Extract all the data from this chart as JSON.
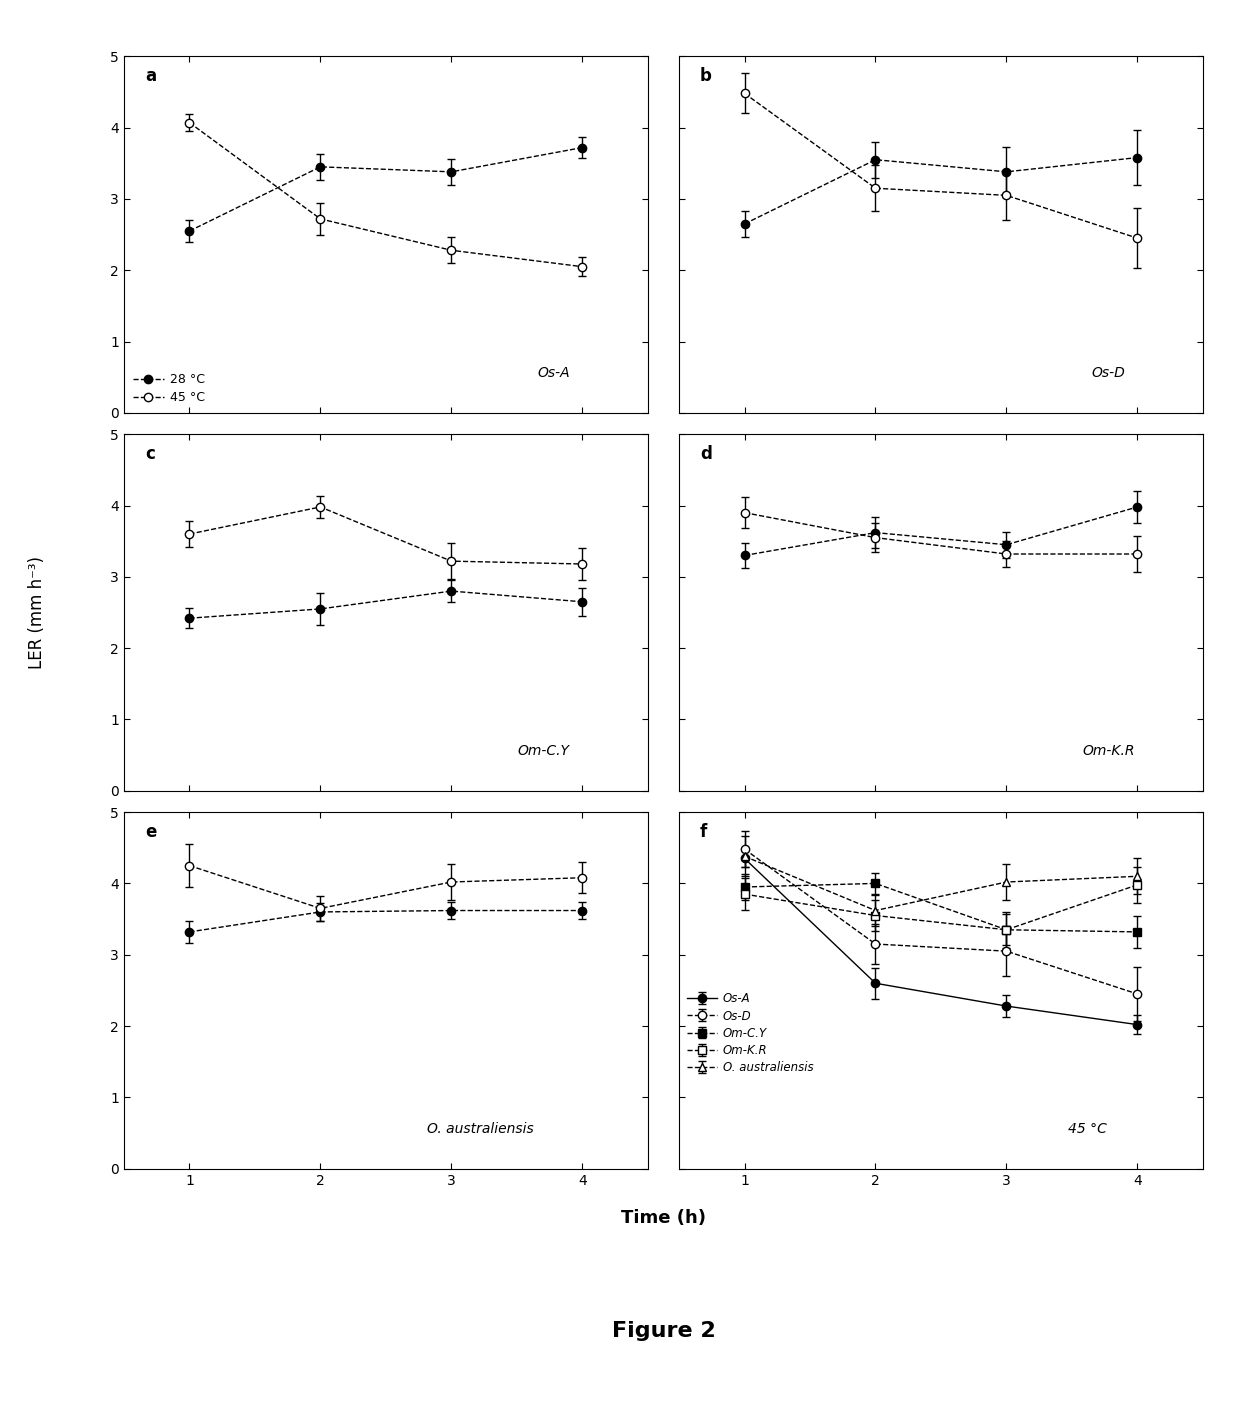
{
  "panels": {
    "a": {
      "label": "a",
      "annotation": "Os-A",
      "series_28": {
        "x": [
          1,
          2,
          3,
          4
        ],
        "y": [
          2.55,
          3.45,
          3.38,
          3.72
        ],
        "yerr": [
          0.15,
          0.18,
          0.18,
          0.15
        ]
      },
      "series_45": {
        "x": [
          1,
          2,
          3,
          4
        ],
        "y": [
          4.07,
          2.72,
          2.28,
          2.05
        ],
        "yerr": [
          0.12,
          0.22,
          0.18,
          0.13
        ]
      }
    },
    "b": {
      "label": "b",
      "annotation": "Os-D",
      "series_28": {
        "x": [
          1,
          2,
          3,
          4
        ],
        "y": [
          2.65,
          3.55,
          3.38,
          3.58
        ],
        "yerr": [
          0.18,
          0.25,
          0.35,
          0.38
        ]
      },
      "series_45": {
        "x": [
          1,
          2,
          3,
          4
        ],
        "y": [
          4.48,
          3.15,
          3.05,
          2.45
        ],
        "yerr": [
          0.28,
          0.32,
          0.35,
          0.42
        ]
      }
    },
    "c": {
      "label": "c",
      "annotation": "Om-C.Y",
      "series_28": {
        "x": [
          1,
          2,
          3,
          4
        ],
        "y": [
          2.42,
          2.55,
          2.8,
          2.65
        ],
        "yerr": [
          0.14,
          0.22,
          0.15,
          0.2
        ]
      },
      "series_45": {
        "x": [
          1,
          2,
          3,
          4
        ],
        "y": [
          3.6,
          3.98,
          3.22,
          3.18
        ],
        "yerr": [
          0.18,
          0.15,
          0.25,
          0.22
        ]
      }
    },
    "d": {
      "label": "d",
      "annotation": "Om-K.R",
      "series_28": {
        "x": [
          1,
          2,
          3,
          4
        ],
        "y": [
          3.3,
          3.62,
          3.45,
          3.98
        ],
        "yerr": [
          0.18,
          0.22,
          0.18,
          0.22
        ]
      },
      "series_45": {
        "x": [
          1,
          2,
          3,
          4
        ],
        "y": [
          3.9,
          3.55,
          3.32,
          3.32
        ],
        "yerr": [
          0.22,
          0.2,
          0.18,
          0.25
        ]
      }
    },
    "e": {
      "label": "e",
      "annotation": "O. australiensis",
      "series_28": {
        "x": [
          1,
          2,
          3,
          4
        ],
        "y": [
          3.32,
          3.6,
          3.62,
          3.62
        ],
        "yerr": [
          0.15,
          0.12,
          0.12,
          0.12
        ]
      },
      "series_45": {
        "x": [
          1,
          2,
          3,
          4
        ],
        "y": [
          4.25,
          3.65,
          4.02,
          4.08
        ],
        "yerr": [
          0.3,
          0.18,
          0.25,
          0.22
        ]
      }
    },
    "f": {
      "label": "f",
      "annotation": "45 °C",
      "OsA": {
        "x": [
          1,
          2,
          3,
          4
        ],
        "y": [
          4.35,
          2.6,
          2.28,
          2.02
        ],
        "yerr": [
          0.12,
          0.22,
          0.15,
          0.13
        ]
      },
      "OsD": {
        "x": [
          1,
          2,
          3,
          4
        ],
        "y": [
          4.48,
          3.15,
          3.05,
          2.45
        ],
        "yerr": [
          0.25,
          0.28,
          0.35,
          0.38
        ]
      },
      "OmCY": {
        "x": [
          1,
          2,
          3,
          4
        ],
        "y": [
          3.95,
          4.0,
          3.35,
          3.32
        ],
        "yerr": [
          0.18,
          0.15,
          0.22,
          0.22
        ]
      },
      "OmKR": {
        "x": [
          1,
          2,
          3,
          4
        ],
        "y": [
          3.85,
          3.55,
          3.35,
          3.98
        ],
        "yerr": [
          0.22,
          0.22,
          0.25,
          0.25
        ]
      },
      "Oaust": {
        "x": [
          1,
          2,
          3,
          4
        ],
        "y": [
          4.38,
          3.62,
          4.02,
          4.1
        ],
        "yerr": [
          0.28,
          0.22,
          0.25,
          0.25
        ]
      }
    }
  },
  "xlabel": "Time (h)",
  "ylabel": "LER (mm h⁻³)",
  "figure_title": "Figure 2",
  "xlim": [
    0.5,
    4.5
  ],
  "ylim": [
    0,
    5
  ],
  "xticks": [
    1,
    2,
    3,
    4
  ],
  "yticks": [
    0,
    1,
    2,
    3,
    4,
    5
  ],
  "legend_a": [
    "28 °C",
    "45 °C"
  ],
  "legend_f": [
    "Os-A",
    "Os-D",
    "Om-C.Y",
    "Om-K.R",
    "O. australiensis"
  ]
}
